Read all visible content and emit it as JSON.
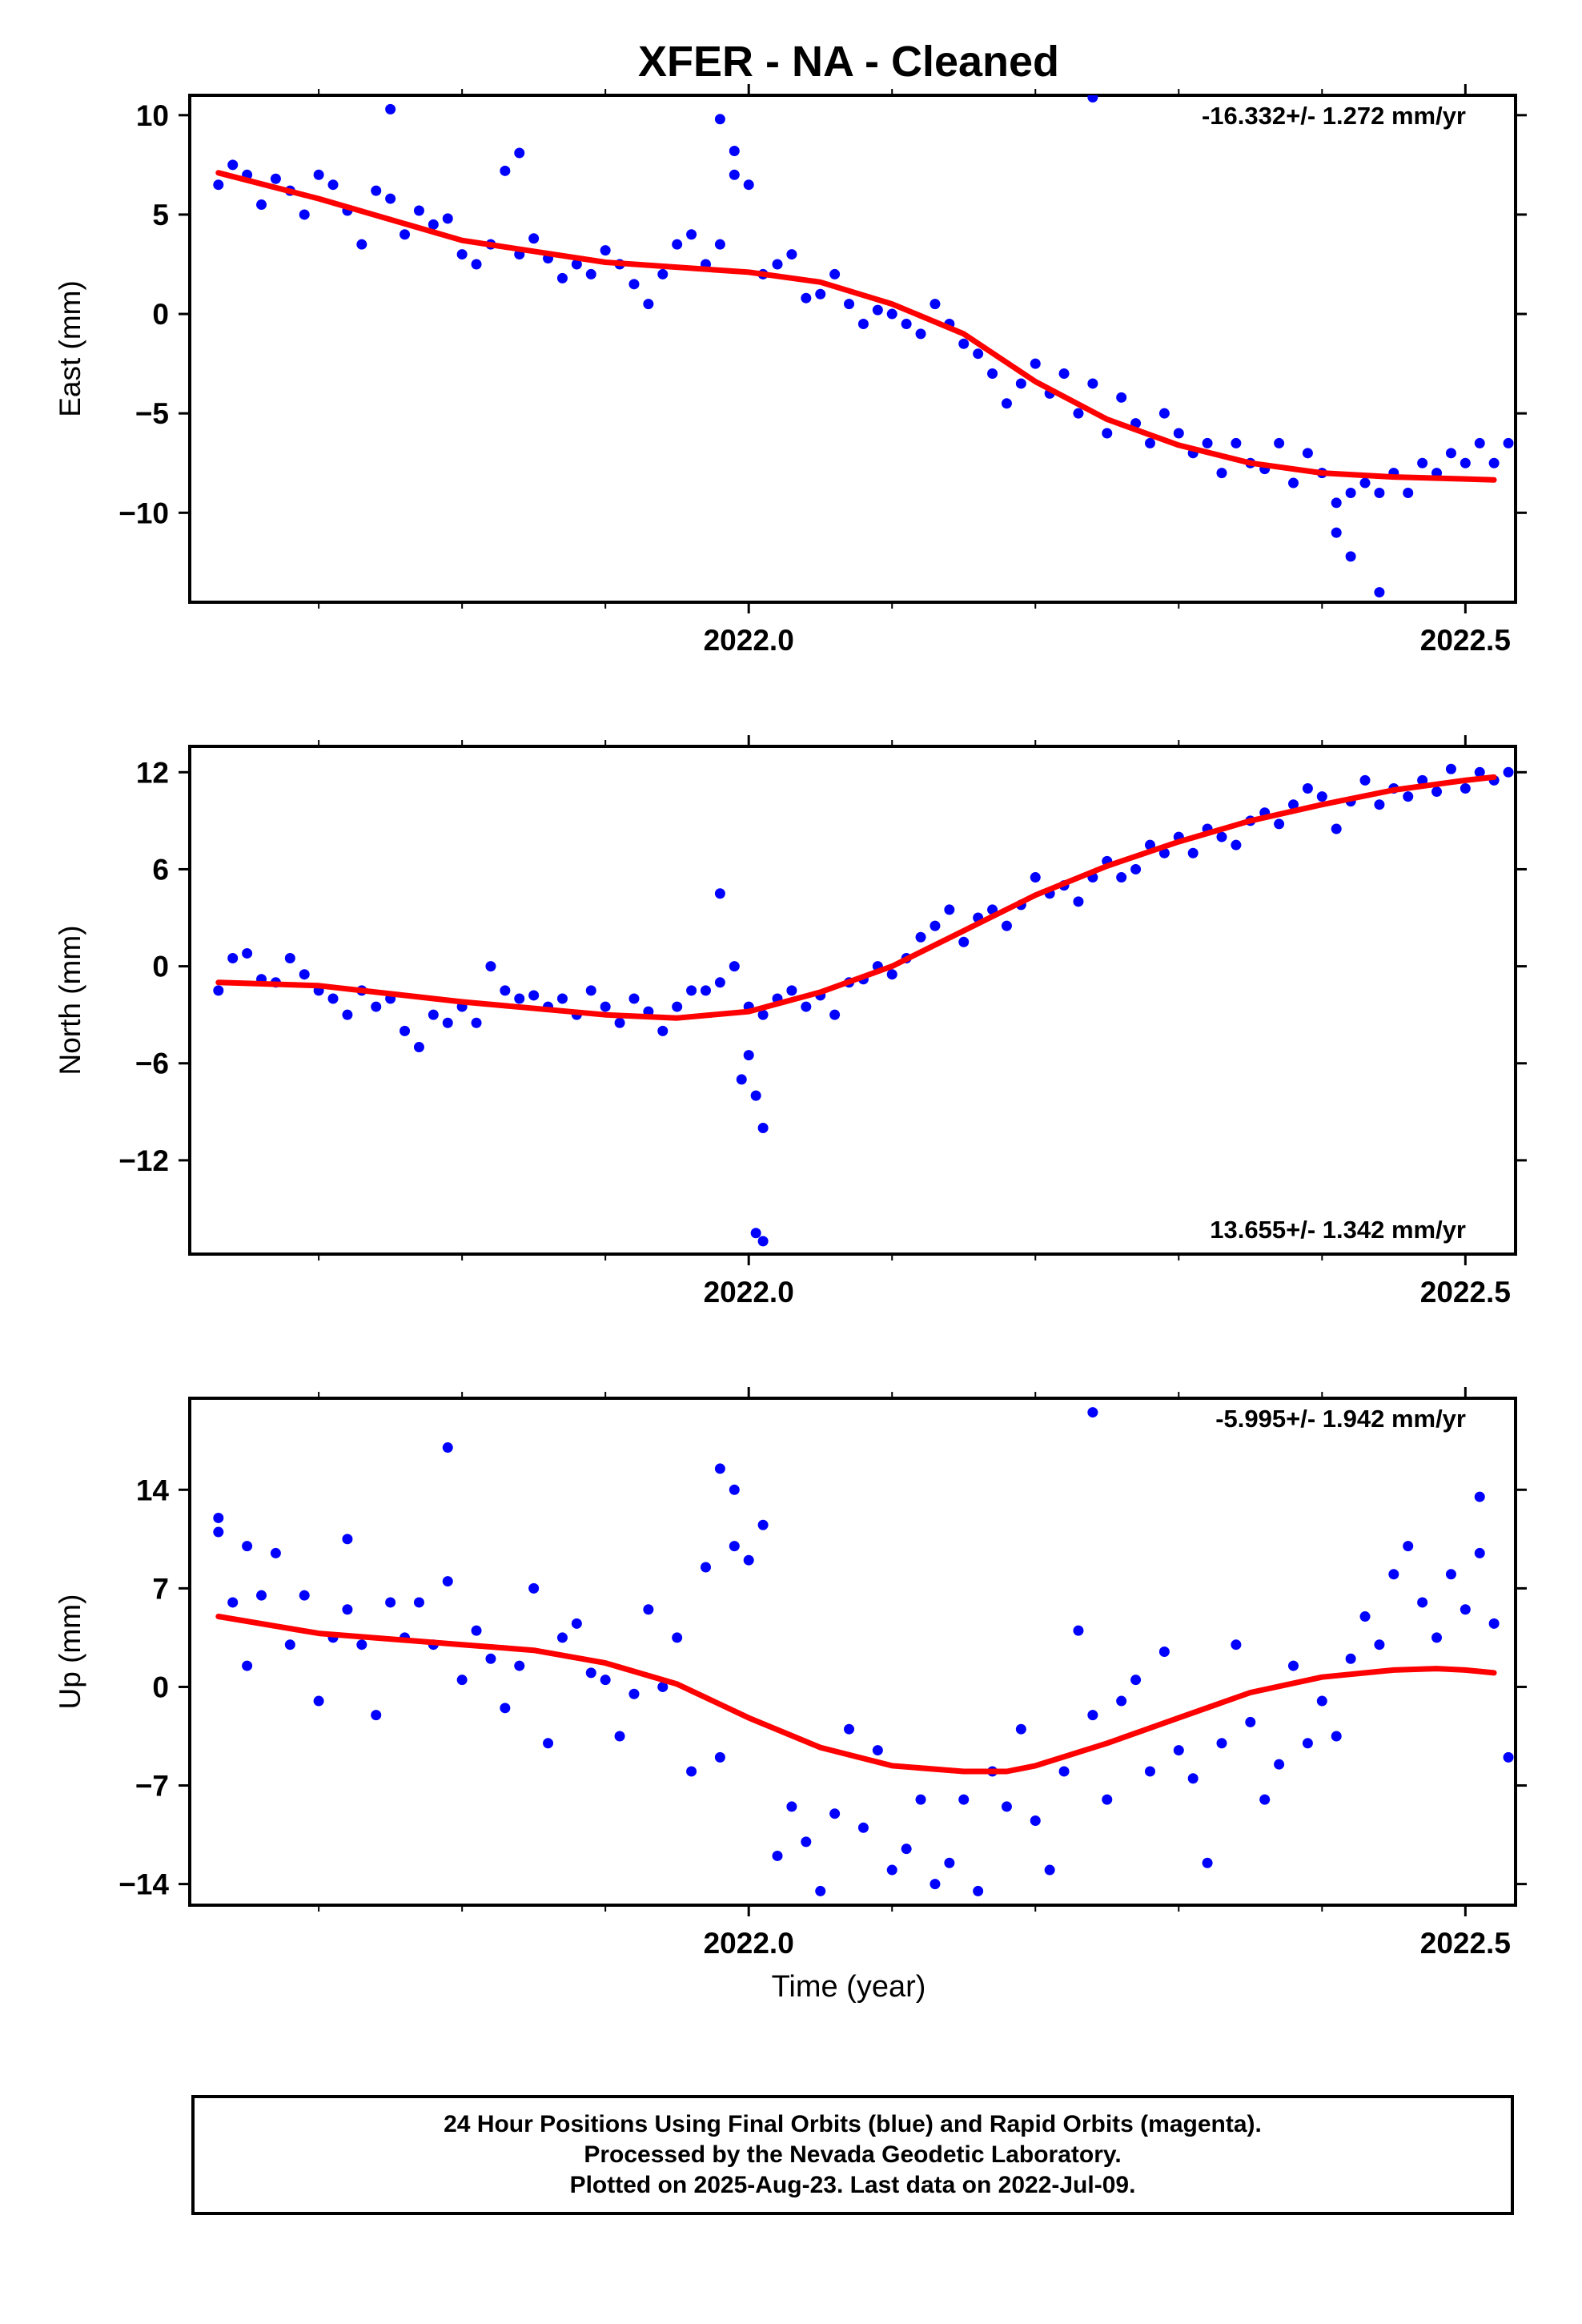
{
  "title": "XFER  - NA - Cleaned",
  "x_axis_label": "Time (year)",
  "footer": {
    "line1": "24 Hour Positions Using Final Orbits (blue) and Rapid Orbits (magenta).",
    "line2": "Processed by the Nevada Geodetic Laboratory.",
    "line3": "Plotted on 2025-Aug-23. Last data on 2022-Jul-09."
  },
  "colors": {
    "data_points": "#0000ff",
    "fit_line": "#ff0000",
    "frame": "#000000"
  },
  "chart_data": [
    {
      "type": "scatter",
      "ylabel": "East (mm)",
      "rate_label": "-16.332+/- 1.272 mm/yr",
      "rate_position": "top-right",
      "xlim": [
        2021.61,
        2022.535
      ],
      "ylim": [
        -14.5,
        11
      ],
      "x_ticks": [
        2022.0,
        2022.5
      ],
      "x_tick_labels": [
        "2022.0",
        "2022.5"
      ],
      "y_ticks": [
        10,
        5,
        0,
        -5,
        -10
      ],
      "y_tick_labels": [
        "10",
        "5",
        "0",
        "−5",
        "−10"
      ],
      "grid": false,
      "fit_x": [
        2021.63,
        2021.7,
        2021.8,
        2021.9,
        2022.0,
        2022.05,
        2022.1,
        2022.15,
        2022.2,
        2022.25,
        2022.3,
        2022.35,
        2022.4,
        2022.45,
        2022.5,
        2022.52
      ],
      "fit_y": [
        7.1,
        5.8,
        3.7,
        2.6,
        2.1,
        1.6,
        0.5,
        -1.0,
        -3.4,
        -5.3,
        -6.6,
        -7.5,
        -8.0,
        -8.2,
        -8.3,
        -8.35
      ],
      "series": [
        {
          "x": [
            2021.63,
            2021.64,
            2021.65,
            2021.66,
            2021.67,
            2021.68,
            2021.69,
            2021.7,
            2021.71,
            2021.72,
            2021.73,
            2021.74,
            2021.75,
            2021.76,
            2021.77,
            2021.78,
            2021.79,
            2021.8,
            2021.81,
            2021.82,
            2021.83,
            2021.84,
            2021.85,
            2021.86,
            2021.87,
            2021.88,
            2021.89,
            2021.9,
            2021.91,
            2021.92,
            2021.93,
            2021.94,
            2021.95,
            2021.96,
            2021.97,
            2021.98,
            2021.99,
            2022.0,
            2022.01,
            2022.02,
            2022.03,
            2022.04,
            2022.05,
            2022.06,
            2022.07,
            2022.08,
            2022.09,
            2022.1,
            2022.11,
            2022.12,
            2022.13,
            2022.14,
            2022.15,
            2022.16,
            2022.17,
            2022.18,
            2022.19,
            2022.2,
            2022.21,
            2022.22,
            2022.23,
            2022.24,
            2022.25,
            2022.26,
            2022.27,
            2022.28,
            2022.29,
            2022.3,
            2022.31,
            2022.32,
            2022.33,
            2022.34,
            2022.35,
            2022.36,
            2022.37,
            2022.38,
            2022.39,
            2022.4,
            2022.41,
            2022.42,
            2022.43,
            2022.44,
            2022.45,
            2022.46,
            2022.47,
            2022.48,
            2022.49,
            2022.5,
            2022.51,
            2022.52,
            2022.53,
            2021.75,
            2021.84,
            2021.98,
            2021.99,
            2022.24,
            2022.41,
            2022.42,
            2022.44
          ],
          "y": [
            6.5,
            7.5,
            7.0,
            5.5,
            6.8,
            6.2,
            5.0,
            7.0,
            6.5,
            5.2,
            3.5,
            6.2,
            5.8,
            4.0,
            5.2,
            4.5,
            4.8,
            3.0,
            2.5,
            3.5,
            7.2,
            3.0,
            3.8,
            2.8,
            1.8,
            2.5,
            2.0,
            3.2,
            2.5,
            1.5,
            0.5,
            2.0,
            3.5,
            4.0,
            2.5,
            3.5,
            7.0,
            6.5,
            2.0,
            2.5,
            3.0,
            0.8,
            1.0,
            2.0,
            0.5,
            -0.5,
            0.2,
            0.0,
            -0.5,
            -1.0,
            0.5,
            -0.5,
            -1.5,
            -2.0,
            -3.0,
            -4.5,
            -3.5,
            -2.5,
            -4.0,
            -3.0,
            -5.0,
            -3.5,
            -6.0,
            -4.2,
            -5.5,
            -6.5,
            -5.0,
            -6.0,
            -7.0,
            -6.5,
            -8.0,
            -6.5,
            -7.5,
            -7.8,
            -6.5,
            -8.5,
            -7.0,
            -8.0,
            -9.5,
            -9.0,
            -8.5,
            -9.0,
            -8.0,
            -9.0,
            -7.5,
            -8.0,
            -7.0,
            -7.5,
            -6.5,
            -7.5,
            -6.5,
            10.3,
            8.1,
            9.8,
            8.2,
            10.9,
            -11.0,
            -12.2,
            -14.0
          ],
          "name": ""
        }
      ]
    },
    {
      "type": "scatter",
      "ylabel": "North (mm)",
      "rate_label": "13.655+/- 1.342 mm/yr",
      "rate_position": "bottom-right",
      "xlim": [
        2021.61,
        2022.535
      ],
      "ylim": [
        -17.8,
        13.6
      ],
      "x_ticks": [
        2022.0,
        2022.5
      ],
      "x_tick_labels": [
        "2022.0",
        "2022.5"
      ],
      "y_ticks": [
        12,
        6,
        0,
        -6,
        -12
      ],
      "y_tick_labels": [
        "12",
        "6",
        "0",
        "−6",
        "−12"
      ],
      "grid": false,
      "fit_x": [
        2021.63,
        2021.7,
        2021.8,
        2021.9,
        2021.95,
        2022.0,
        2022.05,
        2022.1,
        2022.15,
        2022.2,
        2022.25,
        2022.3,
        2022.35,
        2022.4,
        2022.45,
        2022.5,
        2022.52
      ],
      "fit_y": [
        -1.0,
        -1.2,
        -2.2,
        -3.0,
        -3.2,
        -2.8,
        -1.6,
        0.0,
        2.2,
        4.4,
        6.2,
        7.7,
        9.0,
        10.0,
        10.9,
        11.5,
        11.7
      ],
      "series": [
        {
          "x": [
            2021.63,
            2021.64,
            2021.65,
            2021.66,
            2021.67,
            2021.68,
            2021.69,
            2021.7,
            2021.71,
            2021.72,
            2021.73,
            2021.74,
            2021.75,
            2021.76,
            2021.77,
            2021.78,
            2021.79,
            2021.8,
            2021.81,
            2021.82,
            2021.83,
            2021.84,
            2021.85,
            2021.86,
            2021.87,
            2021.88,
            2021.89,
            2021.9,
            2021.91,
            2021.92,
            2021.93,
            2021.94,
            2021.95,
            2021.96,
            2021.97,
            2021.98,
            2021.99,
            2022.0,
            2022.01,
            2022.02,
            2022.03,
            2022.04,
            2022.05,
            2022.06,
            2022.07,
            2022.08,
            2022.09,
            2022.1,
            2022.11,
            2022.12,
            2022.13,
            2022.14,
            2022.15,
            2022.16,
            2022.17,
            2022.18,
            2022.19,
            2022.2,
            2022.21,
            2022.22,
            2022.23,
            2022.24,
            2022.25,
            2022.26,
            2022.27,
            2022.28,
            2022.29,
            2022.3,
            2022.31,
            2022.32,
            2022.33,
            2022.34,
            2022.35,
            2022.36,
            2022.37,
            2022.38,
            2022.39,
            2022.4,
            2022.41,
            2022.42,
            2022.43,
            2022.44,
            2022.45,
            2022.46,
            2022.47,
            2022.48,
            2022.49,
            2022.5,
            2022.51,
            2022.52,
            2022.53,
            2021.98,
            2021.995,
            2022.0,
            2022.005,
            2022.01,
            2022.005,
            2022.01
          ],
          "y": [
            -1.5,
            0.5,
            0.8,
            -0.8,
            -1.0,
            0.5,
            -0.5,
            -1.5,
            -2.0,
            -3.0,
            -1.5,
            -2.5,
            -2.0,
            -4.0,
            -5.0,
            -3.0,
            -3.5,
            -2.5,
            -3.5,
            0.0,
            -1.5,
            -2.0,
            -1.8,
            -2.5,
            -2.0,
            -3.0,
            -1.5,
            -2.5,
            -3.5,
            -2.0,
            -2.8,
            -4.0,
            -2.5,
            -1.5,
            -1.5,
            -1.0,
            0.0,
            -2.5,
            -3.0,
            -2.0,
            -1.5,
            -2.5,
            -1.8,
            -3.0,
            -1.0,
            -0.8,
            0.0,
            -0.5,
            0.5,
            1.8,
            2.5,
            3.5,
            1.5,
            3.0,
            3.5,
            2.5,
            3.8,
            5.5,
            4.5,
            5.0,
            4.0,
            5.5,
            6.5,
            5.5,
            6.0,
            7.5,
            7.0,
            8.0,
            7.0,
            8.5,
            8.0,
            7.5,
            9.0,
            9.5,
            8.8,
            10.0,
            11.0,
            10.5,
            8.5,
            10.2,
            11.5,
            10.0,
            11.0,
            10.5,
            11.5,
            10.8,
            12.2,
            11.0,
            12.0,
            11.5,
            12.0,
            4.5,
            -7.0,
            -5.5,
            -8.0,
            -10.0,
            -16.5,
            -17.0
          ],
          "name": ""
        }
      ]
    },
    {
      "type": "scatter",
      "ylabel": "Up (mm)",
      "rate_label": "-5.995+/- 1.942 mm/yr",
      "rate_position": "top-right",
      "xlim": [
        2021.61,
        2022.535
      ],
      "ylim": [
        -15.5,
        20.5
      ],
      "x_ticks": [
        2022.0,
        2022.5
      ],
      "x_tick_labels": [
        "2022.0",
        "2022.5"
      ],
      "y_ticks": [
        14,
        7,
        0,
        -7,
        -14
      ],
      "y_tick_labels": [
        "14",
        "7",
        "0",
        "−7",
        "−14"
      ],
      "grid": false,
      "fit_x": [
        2021.63,
        2021.7,
        2021.8,
        2021.85,
        2021.9,
        2021.95,
        2022.0,
        2022.05,
        2022.1,
        2022.15,
        2022.18,
        2022.2,
        2022.25,
        2022.3,
        2022.35,
        2022.4,
        2022.45,
        2022.48,
        2022.5,
        2022.52
      ],
      "fit_y": [
        5.0,
        3.8,
        3.0,
        2.6,
        1.7,
        0.2,
        -2.2,
        -4.3,
        -5.6,
        -6.0,
        -6.0,
        -5.6,
        -4.0,
        -2.2,
        -0.4,
        0.7,
        1.2,
        1.3,
        1.2,
        1.0
      ],
      "series": [
        {
          "x": [
            2021.63,
            2021.64,
            2021.65,
            2021.66,
            2021.67,
            2021.68,
            2021.69,
            2021.7,
            2021.71,
            2021.72,
            2021.73,
            2021.74,
            2021.75,
            2021.76,
            2021.77,
            2021.78,
            2021.79,
            2021.8,
            2021.81,
            2021.82,
            2021.83,
            2021.84,
            2021.85,
            2021.86,
            2021.87,
            2021.88,
            2021.89,
            2021.9,
            2021.91,
            2021.92,
            2021.93,
            2021.94,
            2021.95,
            2021.96,
            2021.97,
            2021.98,
            2021.99,
            2022.0,
            2022.01,
            2022.02,
            2022.03,
            2022.04,
            2022.05,
            2022.06,
            2022.07,
            2022.08,
            2022.09,
            2022.1,
            2022.11,
            2022.12,
            2022.13,
            2022.14,
            2022.15,
            2022.16,
            2022.17,
            2022.18,
            2022.19,
            2022.2,
            2022.21,
            2022.22,
            2022.23,
            2022.24,
            2022.25,
            2022.26,
            2022.27,
            2022.28,
            2022.29,
            2022.3,
            2022.31,
            2022.32,
            2022.33,
            2022.34,
            2022.35,
            2022.36,
            2022.37,
            2022.38,
            2022.39,
            2022.4,
            2022.41,
            2022.42,
            2022.43,
            2022.44,
            2022.45,
            2022.46,
            2022.47,
            2022.48,
            2022.49,
            2022.5,
            2022.51,
            2022.52,
            2022.53,
            2021.63,
            2021.65,
            2021.72,
            2021.79,
            2021.98,
            2021.99,
            2022.24,
            2022.51
          ],
          "y": [
            11.0,
            6.0,
            1.5,
            6.5,
            9.5,
            3.0,
            6.5,
            -1.0,
            3.5,
            5.5,
            3.0,
            -2.0,
            6.0,
            3.5,
            6.0,
            3.0,
            7.5,
            0.5,
            4.0,
            2.0,
            -1.5,
            1.5,
            7.0,
            -4.0,
            3.5,
            4.5,
            1.0,
            0.5,
            -3.5,
            -0.5,
            5.5,
            0.0,
            3.5,
            -6.0,
            8.5,
            -5.0,
            10.0,
            9.0,
            11.5,
            -12.0,
            -8.5,
            -11.0,
            -14.5,
            -9.0,
            -3.0,
            -10.0,
            -4.5,
            -13.0,
            -11.5,
            -8.0,
            -14.0,
            -12.5,
            -8.0,
            -14.5,
            -6.0,
            -8.5,
            -3.0,
            -9.5,
            -13.0,
            -6.0,
            4.0,
            -2.0,
            -8.0,
            -1.0,
            0.5,
            -6.0,
            2.5,
            -4.5,
            -6.5,
            -12.5,
            -4.0,
            3.0,
            -2.5,
            -8.0,
            -5.5,
            1.5,
            -4.0,
            -1.0,
            -3.5,
            2.0,
            5.0,
            3.0,
            8.0,
            10.0,
            6.0,
            3.5,
            8.0,
            5.5,
            13.5,
            4.5,
            -5.0,
            12.0,
            10.0,
            10.5,
            17.0,
            15.5,
            14.0,
            19.5,
            9.5
          ],
          "name": ""
        }
      ]
    }
  ]
}
